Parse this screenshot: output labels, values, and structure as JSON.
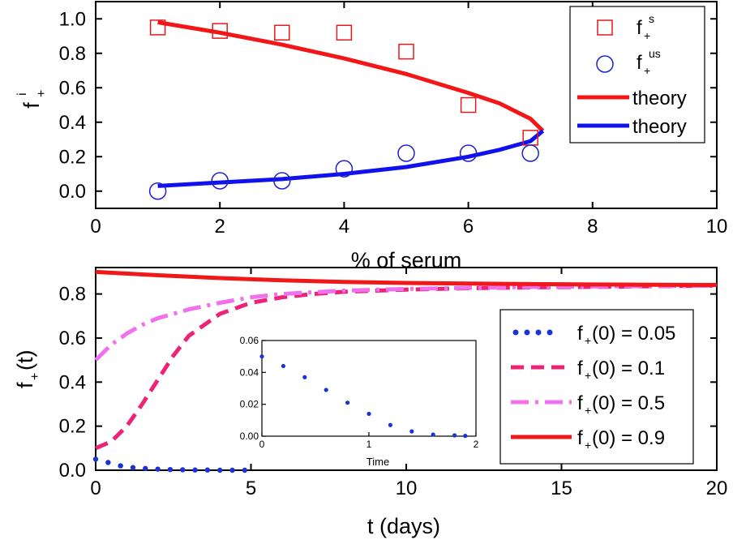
{
  "chart_data": [
    {
      "type": "scatter",
      "xlabel": "% of serum",
      "ylabel_main": "f",
      "ylabel_sub": "+",
      "ylabel_sup": "i",
      "xlim": [
        0,
        10
      ],
      "ylim": [
        -0.1,
        1.1
      ],
      "x_ticks": [
        "0",
        "2",
        "4",
        "6",
        "8",
        "10"
      ],
      "y_ticks": [
        "0.0",
        "0.2",
        "0.4",
        "0.6",
        "0.8",
        "1.0"
      ],
      "legend_position": "top-right",
      "legend": [
        {
          "main": "f",
          "sub": "+",
          "sup": "s"
        },
        {
          "main": "f",
          "sub": "+",
          "sup": "us"
        },
        {
          "label": "theory"
        },
        {
          "label": "theory"
        }
      ],
      "series": [
        {
          "marker": "square",
          "color": "#e41a1c",
          "x": [
            1,
            2,
            3,
            4,
            5,
            6,
            7
          ],
          "y": [
            0.95,
            0.93,
            0.92,
            0.92,
            0.81,
            0.5,
            0.31
          ]
        },
        {
          "marker": "circle",
          "color": "#1f1fd0",
          "x": [
            1,
            2,
            3,
            4,
            5,
            6,
            7
          ],
          "y": [
            0.0,
            0.06,
            0.06,
            0.13,
            0.22,
            0.22,
            0.22
          ]
        },
        {
          "line": "solid",
          "color": "#f41616",
          "x": [
            1,
            2,
            3,
            4,
            5,
            6,
            6.5,
            7,
            7.2
          ],
          "y": [
            0.98,
            0.92,
            0.85,
            0.77,
            0.68,
            0.57,
            0.51,
            0.42,
            0.35
          ]
        },
        {
          "line": "solid",
          "color": "#1111ee",
          "x": [
            1,
            2,
            3,
            4,
            5,
            6,
            6.5,
            7,
            7.2
          ],
          "y": [
            0.03,
            0.05,
            0.07,
            0.1,
            0.14,
            0.2,
            0.24,
            0.29,
            0.35
          ]
        }
      ]
    },
    {
      "type": "line",
      "xlabel": "t (days)",
      "ylabel": "f+(t)",
      "ylabel_main": "f",
      "ylabel_sub": "+",
      "ylabel_rest": "(t)",
      "xlim": [
        0,
        20
      ],
      "ylim": [
        0,
        0.92
      ],
      "x_ticks": [
        "0",
        "5",
        "10",
        "15",
        "20"
      ],
      "y_ticks": [
        "0.0",
        "0.2",
        "0.4",
        "0.6",
        "0.8"
      ],
      "legend_position": "center-right",
      "series": [
        {
          "label_main": "f",
          "label_sub": "+",
          "label_rest": "(0) = 0.05",
          "style": "dotted",
          "color": "#1a33d6",
          "x": [
            0,
            0.4,
            0.8,
            1.2,
            1.6,
            2.0,
            2.4,
            2.8,
            3.2,
            3.6,
            4.0,
            4.4,
            4.8
          ],
          "y": [
            0.05,
            0.035,
            0.02,
            0.012,
            0.008,
            0.005,
            0.003,
            0.002,
            0.001,
            0.001,
            0,
            0,
            0
          ]
        },
        {
          "label_main": "f",
          "label_sub": "+",
          "label_rest": "(0) = 0.1",
          "style": "dashed",
          "color": "#ee2277",
          "x": [
            0,
            0.5,
            1,
            1.5,
            2,
            2.5,
            3,
            4,
            5,
            6,
            7,
            8,
            10,
            12,
            14,
            16,
            18,
            20
          ],
          "y": [
            0.1,
            0.13,
            0.2,
            0.3,
            0.41,
            0.52,
            0.61,
            0.71,
            0.76,
            0.785,
            0.8,
            0.81,
            0.82,
            0.826,
            0.83,
            0.832,
            0.835,
            0.838
          ]
        },
        {
          "label_main": "f",
          "label_sub": "+",
          "label_rest": "(0) = 0.5",
          "style": "dashdot",
          "color": "#f070ee",
          "x": [
            0,
            0.5,
            1,
            1.5,
            2,
            3,
            4,
            5,
            6,
            8,
            10,
            12,
            14,
            16,
            18,
            20
          ],
          "y": [
            0.5,
            0.57,
            0.62,
            0.66,
            0.69,
            0.73,
            0.76,
            0.785,
            0.8,
            0.815,
            0.823,
            0.828,
            0.832,
            0.834,
            0.836,
            0.838
          ]
        },
        {
          "label_main": "f",
          "label_sub": "+",
          "label_rest": "(0) = 0.9",
          "style": "solid",
          "color": "#f01818",
          "x": [
            0,
            2,
            4,
            6,
            8,
            10,
            12,
            14,
            16,
            18,
            20
          ],
          "y": [
            0.9,
            0.885,
            0.872,
            0.862,
            0.855,
            0.85,
            0.847,
            0.845,
            0.843,
            0.842,
            0.841
          ]
        }
      ],
      "inset": {
        "type": "scatter",
        "xlabel": "Time",
        "xlim": [
          0,
          2
        ],
        "ylim": [
          0,
          0.06
        ],
        "x_ticks": [
          "0",
          "1",
          "2"
        ],
        "y_ticks": [
          "0.00",
          "0.02",
          "0.04",
          "0.06"
        ],
        "color": "#1a33d6",
        "x": [
          0,
          0.2,
          0.4,
          0.6,
          0.8,
          1.0,
          1.2,
          1.4,
          1.6,
          1.8,
          1.9
        ],
        "y": [
          0.05,
          0.044,
          0.037,
          0.029,
          0.021,
          0.014,
          0.007,
          0.003,
          0.001,
          0.0005,
          0.0002
        ]
      }
    }
  ]
}
